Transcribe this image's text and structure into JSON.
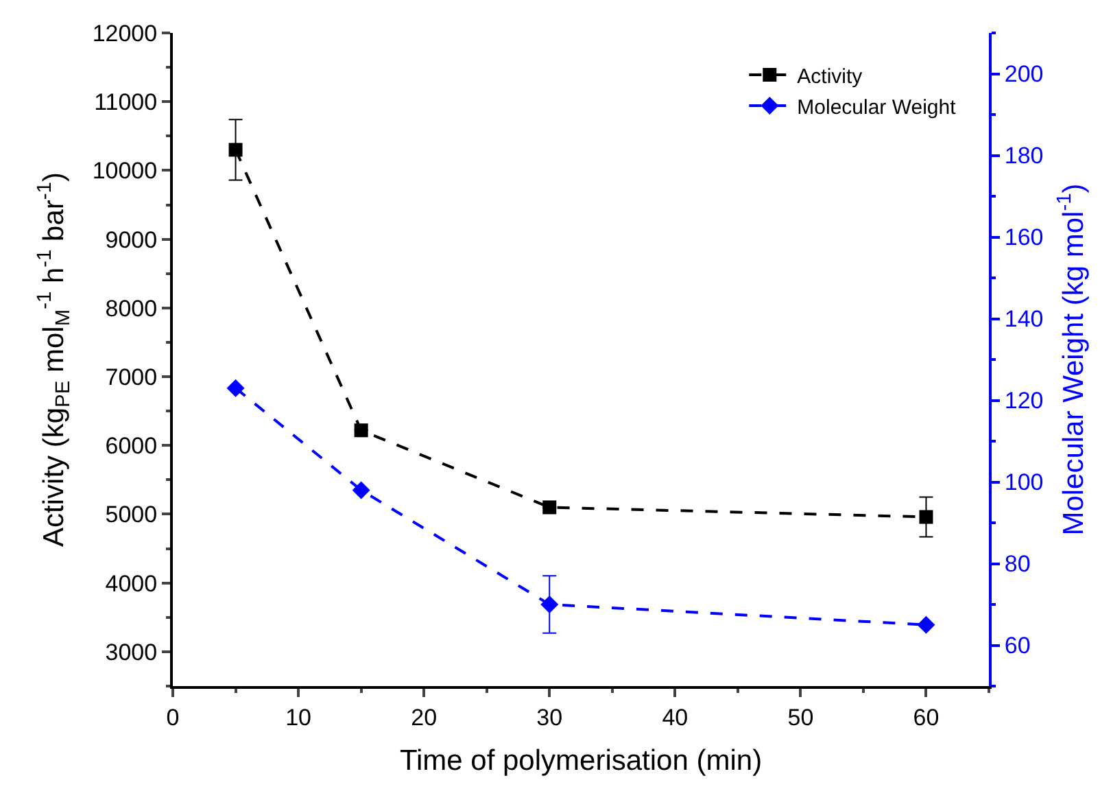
{
  "chart_data": {
    "type": "line",
    "xlabel": "Time of polymerisation (min)",
    "ylabel": "Activity (kg$_{PE}$ mol$_{M}$$^{-1}$ h$^{-1}$ bar$^{-1}$)",
    "y2label": "Molecular Weight (kg mol$^{-1}$)",
    "x": [
      5,
      15,
      30,
      60
    ],
    "series": [
      {
        "name": "Activity",
        "color": "#000000",
        "values": [
          10300,
          6220,
          5100,
          4960
        ],
        "errors": [
          440,
          null,
          null,
          290
        ],
        "marker": "square"
      },
      {
        "name": "Molecular Weight",
        "color": "#0000ff",
        "values": [
          123,
          98,
          70,
          65
        ],
        "errors": [
          null,
          null,
          7,
          null
        ],
        "marker": "diamond",
        "axis": "y2"
      }
    ],
    "xlim": [
      0,
      65
    ],
    "xticks": [
      0,
      10,
      20,
      30,
      40,
      50,
      60
    ],
    "ylim": [
      2500,
      12000
    ],
    "yticks": [
      3000,
      4000,
      5000,
      6000,
      7000,
      8000,
      9000,
      10000,
      11000,
      12000
    ],
    "y2lim": [
      50,
      210
    ],
    "y2ticks": [
      60,
      80,
      100,
      120,
      140,
      160,
      180,
      200
    ],
    "line_style": "dashed",
    "legend": "top right"
  }
}
